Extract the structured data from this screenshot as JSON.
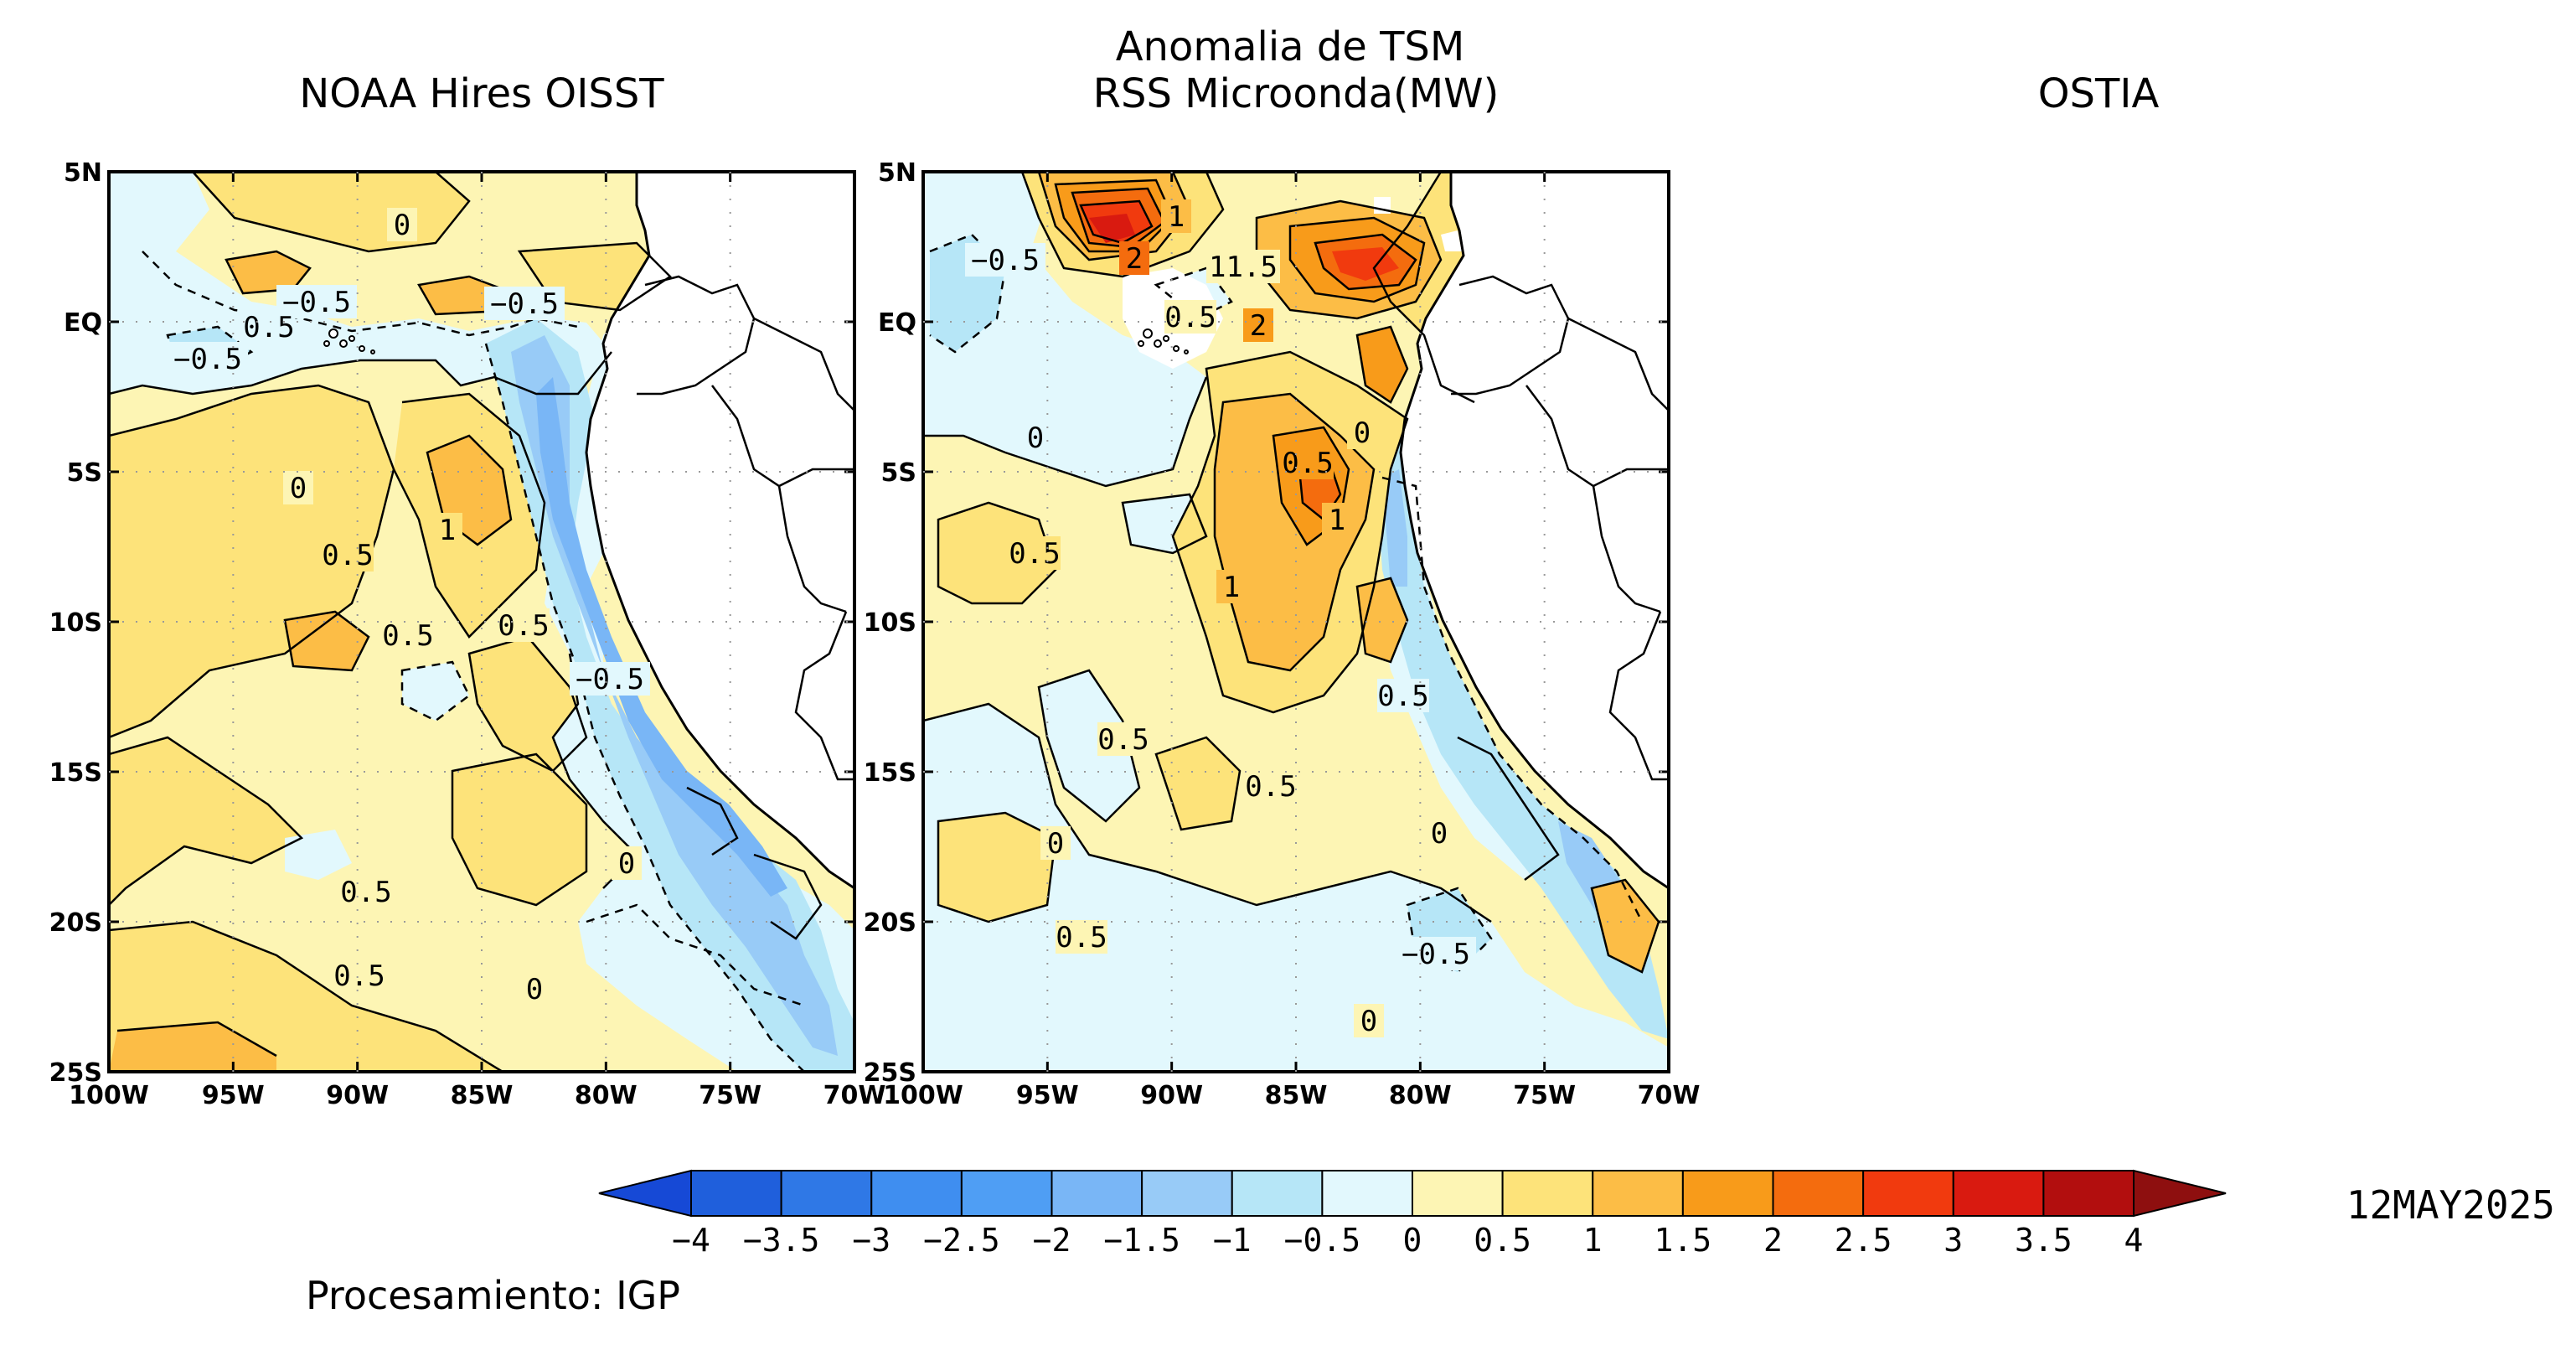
{
  "title_main": "Anomalia de TSM",
  "panels": [
    {
      "title": "NOAA Hires OISST",
      "has_data": true
    },
    {
      "title": "RSS Microonda(MW)",
      "has_data": true
    },
    {
      "title": "OSTIA",
      "has_data": false
    }
  ],
  "axes": {
    "lat_labels": [
      "5N",
      "EQ",
      "5S",
      "10S",
      "15S",
      "20S",
      "25S"
    ],
    "lon_labels": [
      "100W",
      "95W",
      "90W",
      "85W",
      "80W",
      "75W",
      "70W"
    ],
    "lat_range": [
      -25,
      5
    ],
    "lon_range": [
      -100,
      -70
    ]
  },
  "colorbar": {
    "ticks": [
      "−4",
      "−3.5",
      "−3",
      "−2.5",
      "−2",
      "−1.5",
      "−1",
      "−0.5",
      "0",
      "0.5",
      "1",
      "1.5",
      "2",
      "2.5",
      "3",
      "3.5",
      "4"
    ],
    "colors": [
      "#1f5fdc",
      "#2f78e6",
      "#3f8ef0",
      "#4f9ef4",
      "#79b6f6",
      "#98cbf7",
      "#b6e6f7",
      "#e2f8fd",
      "#fdf5b4",
      "#fde37a",
      "#fcbd46",
      "#f89b1a",
      "#f46c0e",
      "#f13a0e",
      "#d91a10",
      "#b20e0e"
    ],
    "low_arrow_color": "#1649d6",
    "high_arrow_color": "#8e0f0f"
  },
  "date": "12MAY2025",
  "credit": "Procesamiento: IGP",
  "panel1_contour_labels": [
    "0",
    "−0.5",
    "0.5",
    "−0.5",
    "−0.5",
    "0",
    "1",
    "0.5",
    "0.5",
    "0.5",
    "−0.5",
    "0",
    "0.5",
    "0.5",
    "0"
  ],
  "panel2_contour_labels": [
    "1",
    "−0.5",
    "2",
    "11.5",
    "0.5",
    "2",
    "0",
    "0",
    "0.5",
    "1",
    "0.5",
    "1",
    "0.5",
    "0.5",
    "0.5",
    "0",
    "0",
    "0.5",
    "−0.5",
    "0"
  ]
}
